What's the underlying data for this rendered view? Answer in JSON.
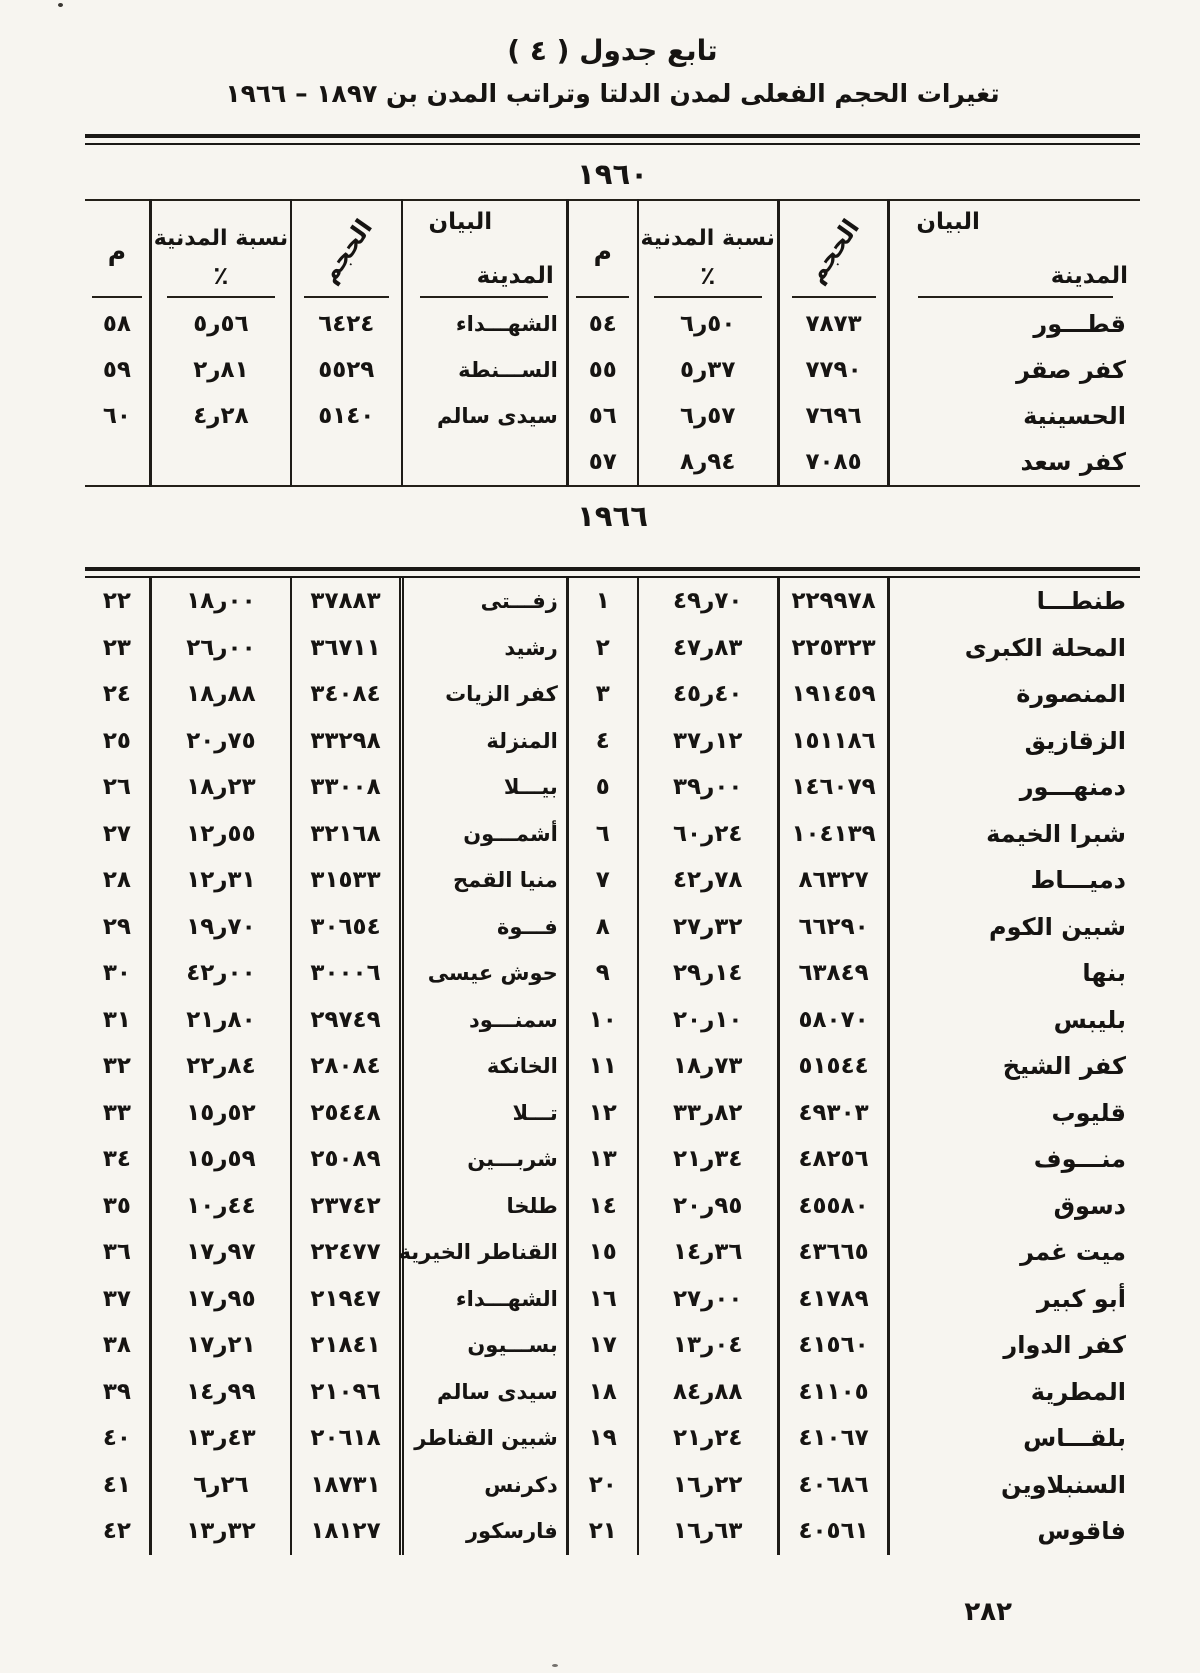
{
  "page": {
    "title": "تابع جدول ( ٤ )",
    "subtitle": "تغيرات الحجم الفعلى لمدن الدلتا وتراتب المدن بن ١٨٩٧ – ١٩٦٦",
    "page_number": "٢٨٢"
  },
  "headers": {
    "statement": "البيان",
    "city": "المدينة",
    "size": "الحجم",
    "urban_ratio": "نسبة المدنية",
    "percent": "٪",
    "rank": "م"
  },
  "table_1960": {
    "year": "١٩٦٠",
    "rows": [
      {
        "city_r": "قطـــور",
        "size_r": "٧٨٧٣",
        "pct_r": "٦ر٥٠",
        "rank_r": "٥٤",
        "city_l": "الشهـــداء",
        "size_l": "٦٤٢٤",
        "pct_l": "٥ر٥٦",
        "rank_l": "٥٨"
      },
      {
        "city_r": "كفر صقر",
        "size_r": "٧٧٩٠",
        "pct_r": "٥ر٣٧",
        "rank_r": "٥٥",
        "city_l": "الســـنطة",
        "size_l": "٥٥٢٩",
        "pct_l": "٢ر٨١",
        "rank_l": "٥٩"
      },
      {
        "city_r": "الحسينية",
        "size_r": "٧٦٩٦",
        "pct_r": "٦ر٥٧",
        "rank_r": "٥٦",
        "city_l": "سيدى سالم",
        "size_l": "٥١٤٠",
        "pct_l": "٤ر٢٨",
        "rank_l": "٦٠"
      },
      {
        "city_r": "كفر سعد",
        "size_r": "٧٠٨٥",
        "pct_r": "٨ر٩٤",
        "rank_r": "٥٧",
        "city_l": "",
        "size_l": "",
        "pct_l": "",
        "rank_l": ""
      }
    ]
  },
  "table_1966": {
    "year": "١٩٦٦",
    "rows": [
      {
        "city_r": "طنطـــا",
        "size_r": "٢٢٩٩٧٨",
        "pct_r": "٤٩ر٧٠",
        "rank_r": "١",
        "city_l": "زفـــتى",
        "size_l": "٣٧٨٨٣",
        "pct_l": "١٨ر٠٠",
        "rank_l": "٢٢"
      },
      {
        "city_r": "المحلة الكبرى",
        "size_r": "٢٢٥٣٢٣",
        "pct_r": "٤٧ر٨٣",
        "rank_r": "٢",
        "city_l": "رشيد",
        "size_l": "٣٦٧١١",
        "pct_l": "٢٦ر٠٠",
        "rank_l": "٢٣"
      },
      {
        "city_r": "المنصورة",
        "size_r": "١٩١٤٥٩",
        "pct_r": "٤٥ر٤٠",
        "rank_r": "٣",
        "city_l": "كفر الزيات",
        "size_l": "٣٤٠٨٤",
        "pct_l": "١٨ر٨٨",
        "rank_l": "٢٤"
      },
      {
        "city_r": "الزقازيق",
        "size_r": "١٥١١٨٦",
        "pct_r": "٣٧ر١٢",
        "rank_r": "٤",
        "city_l": "المنزلة",
        "size_l": "٣٣٢٩٨",
        "pct_l": "٢٠ر٧٥",
        "rank_l": "٢٥"
      },
      {
        "city_r": "دمنهـــور",
        "size_r": "١٤٦٠٧٩",
        "pct_r": "٣٩ر٠٠",
        "rank_r": "٥",
        "city_l": "بيـــلا",
        "size_l": "٣٣٠٠٨",
        "pct_l": "١٨ر٢٣",
        "rank_l": "٢٦"
      },
      {
        "city_r": "شبرا الخيمة",
        "size_r": "١٠٤١٣٩",
        "pct_r": "٦٠ر٢٤",
        "rank_r": "٦",
        "city_l": "أشمـــون",
        "size_l": "٣٢١٦٨",
        "pct_l": "١٢ر٥٥",
        "rank_l": "٢٧"
      },
      {
        "city_r": "دميـــاط",
        "size_r": "٨٦٣٢٧",
        "pct_r": "٤٢ر٧٨",
        "rank_r": "٧",
        "city_l": "منيا القمح",
        "size_l": "٣١٥٣٣",
        "pct_l": "١٢ر٣١",
        "rank_l": "٢٨"
      },
      {
        "city_r": "شبين الكوم",
        "size_r": "٦٦٢٩٠",
        "pct_r": "٢٧ر٣٢",
        "rank_r": "٨",
        "city_l": "فـــوة",
        "size_l": "٣٠٦٥٤",
        "pct_l": "١٩ر٧٠",
        "rank_l": "٢٩"
      },
      {
        "city_r": "بنها",
        "size_r": "٦٣٨٤٩",
        "pct_r": "٢٩ر١٤",
        "rank_r": "٩",
        "city_l": "حوش عيسى",
        "size_l": "٣٠٠٠٦",
        "pct_l": "٤٢ر٠٠",
        "rank_l": "٣٠"
      },
      {
        "city_r": "بليبس",
        "size_r": "٥٨٠٧٠",
        "pct_r": "٢٠ر١٠",
        "rank_r": "١٠",
        "city_l": "سمنـــود",
        "size_l": "٢٩٧٤٩",
        "pct_l": "٢١ر٨٠",
        "rank_l": "٣١"
      },
      {
        "city_r": "كفر الشيخ",
        "size_r": "٥١٥٤٤",
        "pct_r": "١٨ر٧٣",
        "rank_r": "١١",
        "city_l": "الخانكة",
        "size_l": "٢٨٠٨٤",
        "pct_l": "٢٢ر٨٤",
        "rank_l": "٣٢"
      },
      {
        "city_r": "قليوب",
        "size_r": "٤٩٣٠٣",
        "pct_r": "٣٣ر٨٢",
        "rank_r": "١٢",
        "city_l": "تـــلا",
        "size_l": "٢٥٤٤٨",
        "pct_l": "١٥ر٥٢",
        "rank_l": "٣٣"
      },
      {
        "city_r": "منـــوف",
        "size_r": "٤٨٢٥٦",
        "pct_r": "٢١ر٣٤",
        "rank_r": "١٣",
        "city_l": "شربـــين",
        "size_l": "٢٥٠٨٩",
        "pct_l": "١٥ر٥٩",
        "rank_l": "٣٤"
      },
      {
        "city_r": "دسوق",
        "size_r": "٤٥٥٨٠",
        "pct_r": "٢٠ر٩٥",
        "rank_r": "١٤",
        "city_l": "طلخا",
        "size_l": "٢٣٧٤٢",
        "pct_l": "١٠ر٤٤",
        "rank_l": "٣٥"
      },
      {
        "city_r": "ميت غمر",
        "size_r": "٤٣٦٦٥",
        "pct_r": "١٤ر٣٦",
        "rank_r": "١٥",
        "city_l": "القناطر الخيرية",
        "size_l": "٢٢٤٧٧",
        "pct_l": "١٧ر٩٧",
        "rank_l": "٣٦"
      },
      {
        "city_r": "أبو كبير",
        "size_r": "٤١٧٨٩",
        "pct_r": "٢٧ر٠٠",
        "rank_r": "١٦",
        "city_l": "الشهـــداء",
        "size_l": "٢١٩٤٧",
        "pct_l": "١٧ر٩٥",
        "rank_l": "٣٧"
      },
      {
        "city_r": "كفر الدوار",
        "size_r": "٤١٥٦٠",
        "pct_r": "١٣ر٠٤",
        "rank_r": "١٧",
        "city_l": "بســـيون",
        "size_l": "٢١٨٤١",
        "pct_l": "١٧ر٢١",
        "rank_l": "٣٨"
      },
      {
        "city_r": "المطرية",
        "size_r": "٤١١٠٥",
        "pct_r": "٨٤ر٨٨",
        "rank_r": "١٨",
        "city_l": "سيدى سالم",
        "size_l": "٢١٠٩٦",
        "pct_l": "١٤ر٩٩",
        "rank_l": "٣٩"
      },
      {
        "city_r": "بلقـــاس",
        "size_r": "٤١٠٦٧",
        "pct_r": "٢١ر٢٤",
        "rank_r": "١٩",
        "city_l": "شبين القناطر",
        "size_l": "٢٠٦١٨",
        "pct_l": "١٣ر٤٣",
        "rank_l": "٤٠"
      },
      {
        "city_r": "السنبلاوين",
        "size_r": "٤٠٦٨٦",
        "pct_r": "١٦ر٢٢",
        "rank_r": "٢٠",
        "city_l": "دكرنس",
        "size_l": "١٨٧٣١",
        "pct_l": "٦ر٢٦",
        "rank_l": "٤١"
      },
      {
        "city_r": "فاقوس",
        "size_r": "٤٠٥٦١",
        "pct_r": "١٦ر٦٣",
        "rank_r": "٢١",
        "city_l": "فارسكور",
        "size_l": "١٨١٢٧",
        "pct_l": "١٣ر٣٢",
        "rank_l": "٤٢"
      }
    ]
  }
}
